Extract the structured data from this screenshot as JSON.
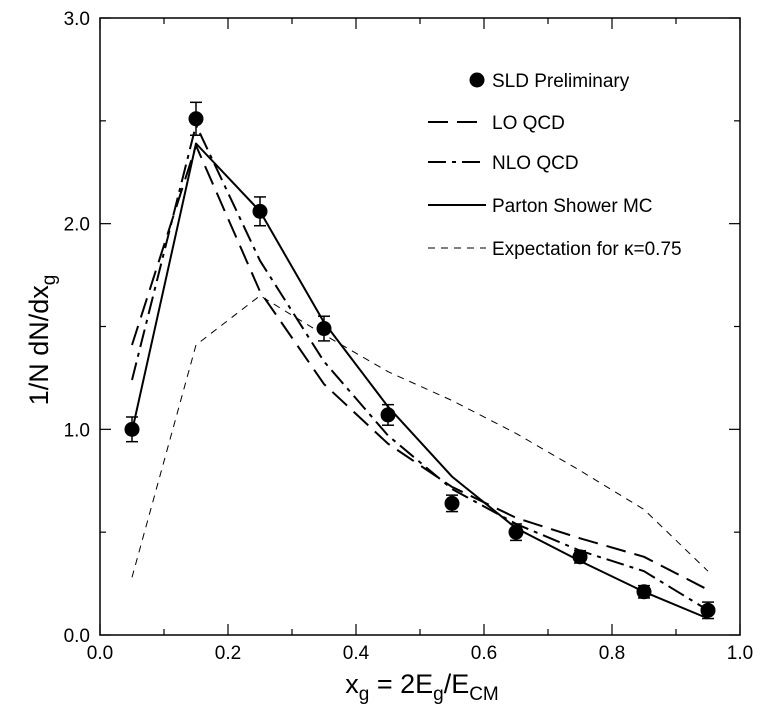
{
  "chart_data": {
    "type": "line",
    "title": "",
    "xlabel": {
      "main": "x",
      "sub1": "g",
      "mid": " = 2E",
      "sub2": "g",
      "slash": "/E",
      "sub3": "CM"
    },
    "ylabel": {
      "main": "1/N  dN/dx",
      "sub": "g"
    },
    "xlim": [
      0.0,
      1.0
    ],
    "ylim": [
      0.0,
      3.0
    ],
    "xticks": [
      "0.0",
      "0.2",
      "0.4",
      "0.6",
      "0.8",
      "1.0"
    ],
    "yticks": [
      "0.0",
      "1.0",
      "2.0",
      "3.0"
    ],
    "grid": false,
    "legend_position": "top-right",
    "data_points": {
      "name": "SLD Preliminary",
      "x": [
        0.05,
        0.15,
        0.25,
        0.35,
        0.45,
        0.55,
        0.65,
        0.75,
        0.85,
        0.95
      ],
      "y": [
        1.0,
        2.51,
        2.06,
        1.49,
        1.07,
        0.64,
        0.5,
        0.38,
        0.21,
        0.12
      ],
      "err": [
        0.06,
        0.08,
        0.07,
        0.06,
        0.05,
        0.04,
        0.04,
        0.03,
        0.03,
        0.04
      ]
    },
    "series": [
      {
        "name": "LO QCD",
        "style": "dashed",
        "x": [
          0.05,
          0.15,
          0.25,
          0.35,
          0.45,
          0.55,
          0.65,
          0.75,
          0.85,
          0.95
        ],
        "y": [
          1.41,
          2.38,
          1.67,
          1.22,
          0.93,
          0.72,
          0.57,
          0.47,
          0.38,
          0.22
        ]
      },
      {
        "name": "NLO QCD",
        "style": "dashdot",
        "x": [
          0.05,
          0.15,
          0.25,
          0.35,
          0.45,
          0.55,
          0.65,
          0.75,
          0.85,
          0.95
        ],
        "y": [
          1.24,
          2.48,
          1.82,
          1.33,
          0.97,
          0.71,
          0.54,
          0.41,
          0.31,
          0.12
        ]
      },
      {
        "name": "Parton Shower MC",
        "style": "solid",
        "x": [
          0.05,
          0.15,
          0.25,
          0.35,
          0.45,
          0.55,
          0.65,
          0.75,
          0.85,
          0.95
        ],
        "y": [
          0.99,
          2.39,
          2.06,
          1.52,
          1.11,
          0.77,
          0.52,
          0.36,
          0.21,
          0.08
        ]
      },
      {
        "name": "Expectation for κ=0.75",
        "style": "thin-dashed",
        "x": [
          0.05,
          0.15,
          0.25,
          0.35,
          0.45,
          0.55,
          0.65,
          0.75,
          0.85,
          0.95
        ],
        "y": [
          0.28,
          1.41,
          1.65,
          1.46,
          1.28,
          1.14,
          0.98,
          0.8,
          0.61,
          0.31
        ]
      }
    ]
  }
}
